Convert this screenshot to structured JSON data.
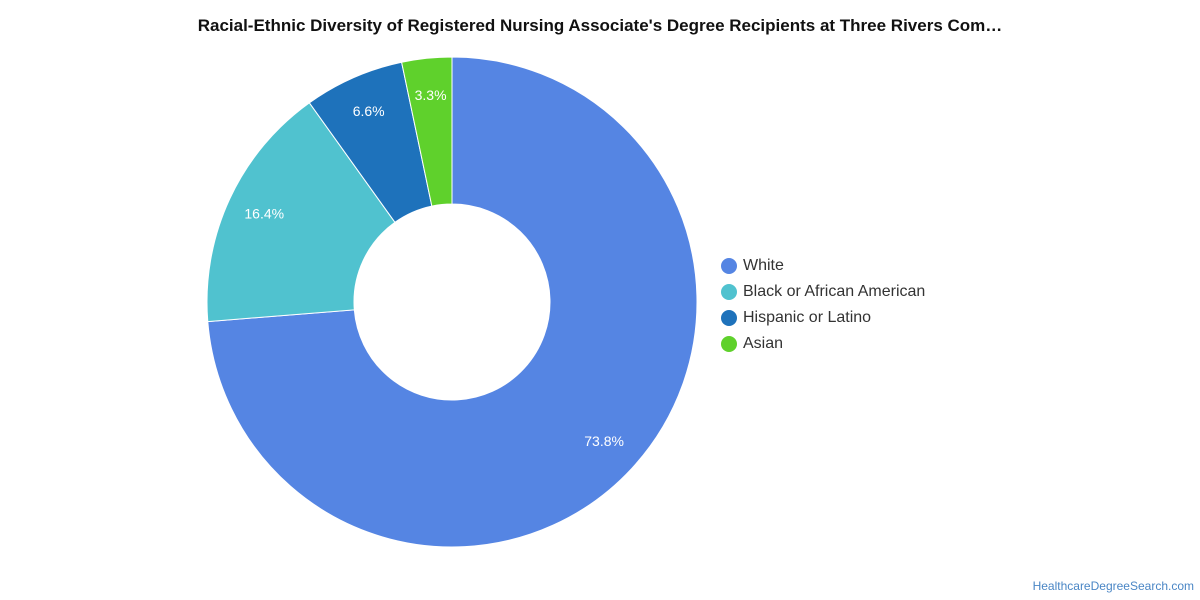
{
  "chart_data": {
    "type": "pie",
    "title": "Racial-Ethnic Diversity of Registered Nursing Associate's Degree Recipients at Three Rivers Com…",
    "categories": [
      "White",
      "Black or African American",
      "Hispanic or Latino",
      "Asian"
    ],
    "values": [
      73.8,
      16.4,
      6.6,
      3.3
    ],
    "value_labels": [
      "73.8%",
      "16.4%",
      "6.6%",
      "3.3%"
    ],
    "colors": [
      "#5585e3",
      "#50c2cf",
      "#1e72bb",
      "#5fd12c"
    ],
    "donut": true,
    "legend_position": "right"
  },
  "footer": {
    "source": "HealthcareDegreeSearch.com"
  }
}
